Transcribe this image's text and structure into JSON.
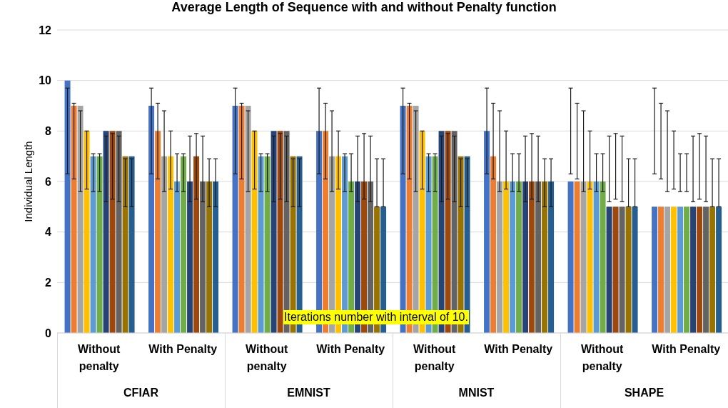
{
  "chart_data": {
    "type": "bar",
    "title": "Average Length of Sequence with and without Penalty function",
    "ylabel": "Individual Length",
    "categories": [
      "Without penalty",
      "With Penalty",
      "Without penalty",
      "With Penalty",
      "Without penalty",
      "With Penalty",
      "Without penalty",
      "With Penalty"
    ],
    "series": [
      {
        "color": "#4472c4",
        "values": [
          10,
          9,
          9,
          8,
          9,
          8,
          6,
          5
        ],
        "errors": [
          [
            6.3,
            9.7
          ],
          [
            6.3,
            9.7
          ],
          [
            6.3,
            9.7
          ],
          [
            6.3,
            9.7
          ],
          [
            6.3,
            9.7
          ],
          [
            6.3,
            9.7
          ],
          [
            6.3,
            9.7
          ],
          [
            6.3,
            9.7
          ]
        ]
      },
      {
        "color": "#ed7d31",
        "values": [
          9,
          8,
          9,
          8,
          9,
          7,
          6,
          5
        ],
        "errors": [
          [
            6.1,
            9.1
          ],
          [
            6.1,
            9.1
          ],
          [
            6.1,
            9.1
          ],
          [
            6.1,
            9.1
          ],
          [
            6.1,
            9.1
          ],
          [
            6.1,
            9.1
          ],
          [
            6.1,
            9.1
          ],
          [
            6.1,
            9.1
          ]
        ]
      },
      {
        "color": "#a5a5a5",
        "values": [
          9,
          7,
          9,
          7,
          9,
          6,
          6,
          5
        ],
        "errors": [
          [
            5.6,
            8.8
          ],
          [
            5.6,
            8.8
          ],
          [
            5.6,
            8.8
          ],
          [
            5.6,
            8.8
          ],
          [
            5.6,
            8.8
          ],
          [
            5.6,
            8.8
          ],
          [
            5.6,
            8.8
          ],
          [
            5.6,
            8.8
          ]
        ]
      },
      {
        "color": "#ffc000",
        "values": [
          8,
          7,
          8,
          7,
          8,
          6,
          6,
          5
        ],
        "errors": [
          [
            5.7,
            8.0
          ],
          [
            5.7,
            8.0
          ],
          [
            5.7,
            8.0
          ],
          [
            5.7,
            8.0
          ],
          [
            5.7,
            8.0
          ],
          [
            5.7,
            8.0
          ],
          [
            5.7,
            8.0
          ],
          [
            5.7,
            8.0
          ]
        ]
      },
      {
        "color": "#5b9bd5",
        "values": [
          7,
          6,
          7,
          7,
          7,
          6,
          6,
          5
        ],
        "errors": [
          [
            5.6,
            7.1
          ],
          [
            5.6,
            7.1
          ],
          [
            5.6,
            7.1
          ],
          [
            5.6,
            7.1
          ],
          [
            5.6,
            7.1
          ],
          [
            5.6,
            7.1
          ],
          [
            5.6,
            7.1
          ],
          [
            5.6,
            7.1
          ]
        ]
      },
      {
        "color": "#70ad47",
        "values": [
          7,
          7,
          7,
          6,
          7,
          6,
          6,
          5
        ],
        "errors": [
          [
            5.6,
            7.1
          ],
          [
            5.6,
            7.1
          ],
          [
            5.6,
            7.1
          ],
          [
            5.6,
            7.1
          ],
          [
            5.6,
            7.1
          ],
          [
            5.6,
            7.1
          ],
          [
            5.6,
            7.1
          ],
          [
            5.6,
            7.1
          ]
        ]
      },
      {
        "color": "#264478",
        "values": [
          8,
          6,
          8,
          6,
          8,
          6,
          5,
          5
        ],
        "errors": [
          [
            5.2,
            7.8
          ],
          [
            5.2,
            7.8
          ],
          [
            5.2,
            7.8
          ],
          [
            5.2,
            7.8
          ],
          [
            5.2,
            7.8
          ],
          [
            5.2,
            7.8
          ],
          [
            5.2,
            7.8
          ],
          [
            5.2,
            7.8
          ]
        ]
      },
      {
        "color": "#9e480e",
        "values": [
          8,
          7,
          8,
          6,
          8,
          6,
          5,
          5
        ],
        "errors": [
          [
            5.3,
            7.9
          ],
          [
            5.3,
            7.9
          ],
          [
            5.3,
            7.9
          ],
          [
            5.3,
            7.9
          ],
          [
            5.3,
            7.9
          ],
          [
            5.3,
            7.9
          ],
          [
            5.3,
            7.9
          ],
          [
            5.3,
            7.9
          ]
        ]
      },
      {
        "color": "#636363",
        "values": [
          8,
          6,
          8,
          6,
          8,
          6,
          5,
          5
        ],
        "errors": [
          [
            5.2,
            7.8
          ],
          [
            5.2,
            7.8
          ],
          [
            5.2,
            7.8
          ],
          [
            5.2,
            7.8
          ],
          [
            5.2,
            7.8
          ],
          [
            5.2,
            7.8
          ],
          [
            5.2,
            7.8
          ],
          [
            5.2,
            7.8
          ]
        ]
      },
      {
        "color": "#997300",
        "values": [
          7,
          6,
          7,
          5,
          7,
          6,
          5,
          5
        ],
        "errors": [
          [
            5.0,
            6.9
          ],
          [
            5.0,
            6.9
          ],
          [
            5.0,
            6.9
          ],
          [
            5.0,
            6.9
          ],
          [
            5.0,
            6.9
          ],
          [
            5.0,
            6.9
          ],
          [
            5.0,
            6.9
          ],
          [
            5.0,
            6.9
          ]
        ]
      },
      {
        "color": "#255e91",
        "values": [
          7,
          6,
          7,
          5,
          7,
          6,
          5,
          5
        ],
        "errors": [
          [
            5.0,
            6.9
          ],
          [
            5.0,
            6.9
          ],
          [
            5.0,
            6.9
          ],
          [
            5.0,
            6.9
          ],
          [
            5.0,
            6.9
          ],
          [
            5.0,
            6.9
          ],
          [
            5.0,
            6.9
          ],
          [
            5.0,
            6.9
          ]
        ]
      }
    ],
    "ylim": [
      0,
      12
    ],
    "yticks": [
      0,
      2,
      4,
      6,
      8,
      10,
      12
    ],
    "grid": "y",
    "legend": false,
    "annotations": [
      "Iterations number with interval of 10.",
      "CFIAR",
      "EMNIST",
      "MNIST",
      "SHAPE"
    ]
  }
}
